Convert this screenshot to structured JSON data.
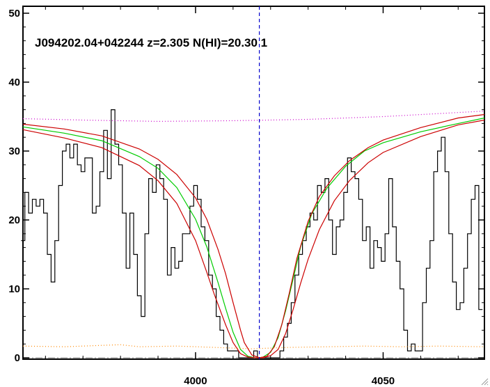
{
  "chart_data": {
    "type": "line",
    "title": "J094202.04+042244 z=2.305 N(HI)=20.30 1",
    "xlabel": "",
    "ylabel": "",
    "xlim": [
      3954,
      4077
    ],
    "ylim": [
      0,
      50
    ],
    "x_ticks": [
      4000,
      4050
    ],
    "y_ticks": [
      0,
      10,
      20,
      30,
      40,
      50
    ],
    "grid": false,
    "absorber_center_x": 4017,
    "colors": {
      "spectrum": "#000000",
      "fit": "#00cc00",
      "fit_bounds": "#cc0000",
      "continuum": "#cc00cc",
      "marker": "#0000cc",
      "error": "#ff8800",
      "zero": "#888888"
    },
    "series": [
      {
        "style": "steps",
        "color": "#000000",
        "x": [
          3954,
          3955,
          3956,
          3957,
          3958,
          3959,
          3960,
          3961,
          3962,
          3963,
          3964,
          3965,
          3966,
          3967,
          3968,
          3969,
          3970,
          3971,
          3972,
          3973,
          3974,
          3975,
          3976,
          3977,
          3978,
          3979,
          3980,
          3981,
          3982,
          3983,
          3984,
          3985,
          3986,
          3987,
          3988,
          3989,
          3990,
          3991,
          3992,
          3993,
          3994,
          3995,
          3996,
          3997,
          3998,
          3999,
          4000,
          4001,
          4002,
          4003,
          4004,
          4005,
          4006,
          4007,
          4008,
          4009,
          4010,
          4011,
          4012,
          4013,
          4014,
          4015,
          4016,
          4017,
          4018,
          4019,
          4020,
          4021,
          4022,
          4023,
          4024,
          4025,
          4026,
          4027,
          4028,
          4029,
          4030,
          4031,
          4032,
          4033,
          4034,
          4035,
          4036,
          4037,
          4038,
          4039,
          4040,
          4041,
          4042,
          4043,
          4044,
          4045,
          4046,
          4047,
          4048,
          4049,
          4050,
          4051,
          4052,
          4053,
          4054,
          4055,
          4056,
          4057,
          4058,
          4059,
          4060,
          4061,
          4062,
          4063,
          4064,
          4065,
          4066,
          4067,
          4068,
          4069,
          4070,
          4071,
          4072,
          4073,
          4074,
          4075,
          4076
        ],
        "y": [
          17,
          24,
          21,
          23,
          22,
          23,
          21,
          15,
          11,
          17,
          25,
          30,
          31,
          29,
          31,
          28,
          27,
          29,
          29,
          21,
          22,
          27,
          33,
          26,
          36,
          31,
          28,
          21,
          13,
          21,
          15,
          9,
          6,
          18,
          26,
          24,
          28,
          26,
          23,
          12,
          16,
          13,
          14,
          18,
          18,
          22,
          25,
          23,
          19,
          17,
          12,
          10,
          6,
          4,
          2,
          1,
          1,
          1,
          0,
          0,
          0,
          0,
          1,
          0,
          0,
          0,
          0,
          0,
          0,
          1,
          3,
          5,
          8,
          12,
          15,
          17,
          19,
          21,
          20,
          25,
          24,
          26,
          20,
          15,
          19,
          20,
          24,
          29,
          27,
          26,
          23,
          17,
          19,
          13,
          17,
          16,
          14,
          18,
          26,
          19,
          14,
          10,
          4,
          1,
          2,
          1,
          1,
          8,
          13,
          17,
          27,
          30,
          32,
          27,
          18,
          11,
          7,
          8,
          13,
          18,
          23,
          25,
          7
        ]
      },
      {
        "style": "line",
        "color": "#00cc00",
        "x": [
          3954,
          3965,
          3975,
          3985,
          3990,
          3995,
          4000,
          4003,
          4006,
          4008,
          4010,
          4012,
          4014,
          4016,
          4017,
          4018,
          4020,
          4022,
          4024,
          4026,
          4028,
          4031,
          4035,
          4040,
          4045,
          4050,
          4060,
          4070,
          4077
        ],
        "y": [
          33.5,
          32.6,
          31.5,
          29.2,
          27.5,
          24.7,
          20.1,
          16.1,
          10.9,
          7.2,
          3.7,
          1.2,
          0.2,
          0,
          0,
          0.1,
          0.8,
          2.9,
          6.8,
          11.4,
          16.1,
          20.9,
          24.6,
          27.8,
          30.0,
          31.2,
          32.8,
          34.0,
          34.8
        ]
      },
      {
        "style": "line",
        "color": "#cc0000",
        "x": [
          3954,
          3965,
          3975,
          3985,
          3990,
          3995,
          4000,
          4003,
          4006,
          4008,
          4010,
          4012,
          4013,
          4015,
          4017,
          4019,
          4021,
          4023,
          4025,
          4027,
          4030,
          4033,
          4037,
          4041,
          4046,
          4050,
          4060,
          4070,
          4077
        ],
        "y": [
          33.9,
          33.2,
          32.2,
          30.3,
          28.8,
          26.6,
          23.2,
          20.1,
          15.7,
          12.2,
          8.0,
          4.0,
          2.2,
          0.4,
          0,
          0.2,
          1.6,
          4.8,
          9.4,
          14.4,
          19.8,
          23.4,
          26.4,
          28.6,
          30.5,
          31.6,
          33.4,
          34.8,
          35.3
        ]
      },
      {
        "style": "line",
        "color": "#cc0000",
        "x": [
          3954,
          3965,
          3975,
          3985,
          3990,
          3995,
          4000,
          4003,
          4005,
          4008,
          4010,
          4012,
          4014,
          4016,
          4018,
          4020,
          4022,
          4024,
          4026,
          4028,
          4030,
          4033,
          4037,
          4041,
          4046,
          4050,
          4060,
          4070,
          4077
        ],
        "y": [
          33.1,
          31.9,
          30.5,
          27.9,
          25.7,
          22.4,
          17.0,
          12.4,
          9.2,
          4.8,
          2.2,
          0.6,
          0.1,
          0,
          0,
          0.3,
          1.2,
          3.5,
          7.0,
          10.8,
          14.3,
          18.6,
          22.8,
          25.7,
          28.3,
          29.8,
          32.1,
          33.8,
          34.5
        ]
      },
      {
        "style": "dotted",
        "color": "#cc00cc",
        "x": [
          3954,
          3970,
          3990,
          4010,
          4030,
          4050,
          4077
        ],
        "y": [
          34.7,
          34.5,
          34.3,
          34.4,
          34.6,
          35.0,
          35.8
        ]
      },
      {
        "style": "dotted",
        "color": "#ff8800",
        "x": [
          3954,
          3965,
          3975,
          3980,
          3985,
          3995,
          4005,
          4015,
          4025,
          4035,
          4045,
          4055,
          4065,
          4077
        ],
        "y": [
          1.7,
          1.6,
          1.8,
          1.9,
          1.6,
          1.7,
          1.5,
          1.3,
          1.5,
          1.6,
          1.7,
          1.6,
          1.7,
          1.6
        ]
      }
    ]
  }
}
